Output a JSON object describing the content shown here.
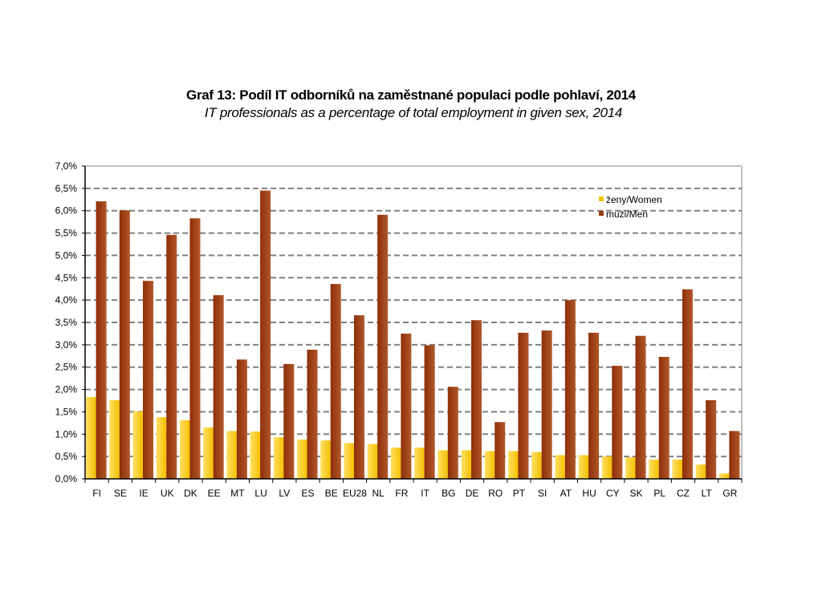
{
  "chart_data": {
    "type": "bar",
    "title": "Graf 13: Podíl IT odborníků na zaměstnané populaci podle pohlaví, 2014",
    "subtitle": "IT professionals as a percentage of total employment in given sex, 2014",
    "xlabel": "",
    "ylabel": "",
    "ylim": [
      0,
      7.0
    ],
    "yticks": [
      0,
      0.5,
      1.0,
      1.5,
      2.0,
      2.5,
      3.0,
      3.5,
      4.0,
      4.5,
      5.0,
      5.5,
      6.0,
      6.5,
      7.0
    ],
    "ytick_labels": [
      "0,0%",
      "0,5%",
      "1,0%",
      "1,5%",
      "2,0%",
      "2,5%",
      "3,0%",
      "3,5%",
      "4,0%",
      "4,5%",
      "5,0%",
      "5,5%",
      "6,0%",
      "6,5%",
      "7,0%"
    ],
    "grid": true,
    "legend_position": "top-right",
    "categories": [
      "FI",
      "SE",
      "IE",
      "UK",
      "DK",
      "EE",
      "MT",
      "LU",
      "LV",
      "ES",
      "BE",
      "EU28",
      "NL",
      "FR",
      "IT",
      "BG",
      "DE",
      "RO",
      "PT",
      "SI",
      "AT",
      "HU",
      "CY",
      "SK",
      "PL",
      "CZ",
      "LT",
      "GR"
    ],
    "series": [
      {
        "name": "ženy/Women",
        "color": "#f5c400",
        "values": [
          1.83,
          1.76,
          1.51,
          1.38,
          1.31,
          1.15,
          1.07,
          1.06,
          0.93,
          0.88,
          0.86,
          0.8,
          0.78,
          0.7,
          0.7,
          0.64,
          0.64,
          0.62,
          0.62,
          0.6,
          0.53,
          0.53,
          0.5,
          0.48,
          0.43,
          0.43,
          0.32,
          0.12
        ]
      },
      {
        "name": "muži/Men",
        "color": "#9a3a14",
        "values": [
          6.21,
          6.01,
          4.43,
          5.46,
          5.83,
          4.11,
          2.67,
          6.45,
          2.57,
          2.89,
          4.36,
          3.66,
          5.91,
          3.25,
          2.99,
          2.06,
          3.55,
          1.27,
          3.27,
          3.32,
          4.0,
          3.27,
          2.53,
          3.2,
          2.73,
          4.24,
          1.76,
          1.07
        ]
      }
    ]
  }
}
